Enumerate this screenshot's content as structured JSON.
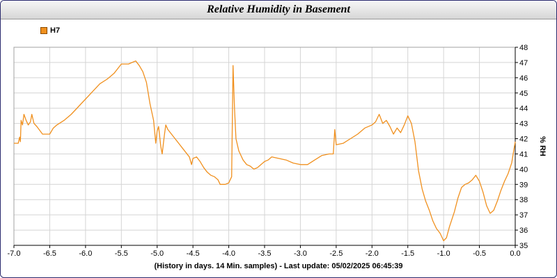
{
  "title": "Relative Humidity in Basement",
  "chart_data": {
    "type": "line",
    "title": "Relative Humidity in Basement",
    "xlabel": "(History in days. 14 Min. samples) - Last update: 05/02/2025 06:45:39",
    "ylabel": "% RH",
    "xlim": [
      -7.0,
      0.0
    ],
    "ylim": [
      35,
      48
    ],
    "x_ticks": [
      "-7.0",
      "-6.5",
      "-6.0",
      "-5.5",
      "-5.0",
      "-4.5",
      "-4.0",
      "-3.5",
      "-3.0",
      "-2.5",
      "-2.0",
      "-1.5",
      "-1.0",
      "-0.5",
      "0.0"
    ],
    "y_ticks": [
      "35",
      "36",
      "37",
      "38",
      "39",
      "40",
      "41",
      "42",
      "43",
      "44",
      "45",
      "46",
      "47",
      "48"
    ],
    "grid": true,
    "legend_position": "top-left",
    "series": [
      {
        "name": "H7",
        "color": "#f0901e",
        "points": [
          [
            -7.0,
            41.7
          ],
          [
            -6.94,
            41.7
          ],
          [
            -6.92,
            42.1
          ],
          [
            -6.91,
            41.8
          ],
          [
            -6.9,
            43.2
          ],
          [
            -6.88,
            42.9
          ],
          [
            -6.86,
            43.6
          ],
          [
            -6.83,
            43.2
          ],
          [
            -6.8,
            42.9
          ],
          [
            -6.77,
            43.1
          ],
          [
            -6.75,
            43.6
          ],
          [
            -6.72,
            43.0
          ],
          [
            -6.68,
            42.8
          ],
          [
            -6.6,
            42.3
          ],
          [
            -6.5,
            42.3
          ],
          [
            -6.45,
            42.7
          ],
          [
            -6.4,
            42.9
          ],
          [
            -6.3,
            43.2
          ],
          [
            -6.2,
            43.6
          ],
          [
            -6.1,
            44.1
          ],
          [
            -6.0,
            44.6
          ],
          [
            -5.9,
            45.1
          ],
          [
            -5.8,
            45.6
          ],
          [
            -5.7,
            45.9
          ],
          [
            -5.65,
            46.1
          ],
          [
            -5.6,
            46.3
          ],
          [
            -5.5,
            46.9
          ],
          [
            -5.4,
            46.9
          ],
          [
            -5.35,
            47.0
          ],
          [
            -5.3,
            47.1
          ],
          [
            -5.25,
            46.8
          ],
          [
            -5.2,
            46.4
          ],
          [
            -5.15,
            45.7
          ],
          [
            -5.1,
            44.3
          ],
          [
            -5.05,
            43.2
          ],
          [
            -5.02,
            41.7
          ],
          [
            -5.0,
            42.5
          ],
          [
            -4.98,
            42.8
          ],
          [
            -4.95,
            41.5
          ],
          [
            -4.93,
            41.0
          ],
          [
            -4.9,
            42.2
          ],
          [
            -4.88,
            42.9
          ],
          [
            -4.85,
            42.6
          ],
          [
            -4.8,
            42.3
          ],
          [
            -4.75,
            42.0
          ],
          [
            -4.7,
            41.7
          ],
          [
            -4.65,
            41.4
          ],
          [
            -4.6,
            41.1
          ],
          [
            -4.55,
            40.8
          ],
          [
            -4.52,
            40.3
          ],
          [
            -4.5,
            40.7
          ],
          [
            -4.45,
            40.8
          ],
          [
            -4.4,
            40.5
          ],
          [
            -4.35,
            40.1
          ],
          [
            -4.3,
            39.8
          ],
          [
            -4.25,
            39.6
          ],
          [
            -4.2,
            39.5
          ],
          [
            -4.15,
            39.3
          ],
          [
            -4.12,
            39.0
          ],
          [
            -4.05,
            39.0
          ],
          [
            -4.0,
            39.1
          ],
          [
            -3.98,
            39.3
          ],
          [
            -3.96,
            39.5
          ],
          [
            -3.94,
            46.8
          ],
          [
            -3.92,
            44.0
          ],
          [
            -3.9,
            42.0
          ],
          [
            -3.86,
            41.2
          ],
          [
            -3.8,
            40.6
          ],
          [
            -3.75,
            40.3
          ],
          [
            -3.7,
            40.2
          ],
          [
            -3.65,
            40.0
          ],
          [
            -3.6,
            40.1
          ],
          [
            -3.55,
            40.3
          ],
          [
            -3.5,
            40.5
          ],
          [
            -3.45,
            40.6
          ],
          [
            -3.4,
            40.8
          ],
          [
            -3.3,
            40.7
          ],
          [
            -3.2,
            40.6
          ],
          [
            -3.1,
            40.4
          ],
          [
            -3.0,
            40.3
          ],
          [
            -2.9,
            40.3
          ],
          [
            -2.8,
            40.6
          ],
          [
            -2.7,
            40.9
          ],
          [
            -2.6,
            41.0
          ],
          [
            -2.54,
            41.0
          ],
          [
            -2.52,
            42.6
          ],
          [
            -2.5,
            41.6
          ],
          [
            -2.4,
            41.7
          ],
          [
            -2.3,
            42.0
          ],
          [
            -2.2,
            42.3
          ],
          [
            -2.1,
            42.7
          ],
          [
            -2.0,
            42.9
          ],
          [
            -1.95,
            43.1
          ],
          [
            -1.9,
            43.6
          ],
          [
            -1.85,
            43.0
          ],
          [
            -1.8,
            43.2
          ],
          [
            -1.75,
            42.8
          ],
          [
            -1.7,
            42.3
          ],
          [
            -1.65,
            42.7
          ],
          [
            -1.6,
            42.4
          ],
          [
            -1.55,
            42.9
          ],
          [
            -1.5,
            43.5
          ],
          [
            -1.45,
            43.0
          ],
          [
            -1.4,
            41.8
          ],
          [
            -1.35,
            39.9
          ],
          [
            -1.3,
            38.7
          ],
          [
            -1.25,
            37.9
          ],
          [
            -1.2,
            37.3
          ],
          [
            -1.15,
            36.6
          ],
          [
            -1.1,
            36.1
          ],
          [
            -1.05,
            35.8
          ],
          [
            -1.02,
            35.5
          ],
          [
            -1.0,
            35.3
          ],
          [
            -0.96,
            35.5
          ],
          [
            -0.92,
            36.2
          ],
          [
            -0.85,
            37.2
          ],
          [
            -0.8,
            38.1
          ],
          [
            -0.75,
            38.8
          ],
          [
            -0.7,
            39.0
          ],
          [
            -0.65,
            39.1
          ],
          [
            -0.6,
            39.3
          ],
          [
            -0.55,
            39.6
          ],
          [
            -0.5,
            39.2
          ],
          [
            -0.45,
            38.5
          ],
          [
            -0.4,
            37.6
          ],
          [
            -0.35,
            37.1
          ],
          [
            -0.3,
            37.3
          ],
          [
            -0.25,
            37.9
          ],
          [
            -0.2,
            38.6
          ],
          [
            -0.15,
            39.2
          ],
          [
            -0.1,
            39.7
          ],
          [
            -0.05,
            40.4
          ],
          [
            0.0,
            41.8
          ]
        ]
      }
    ]
  }
}
